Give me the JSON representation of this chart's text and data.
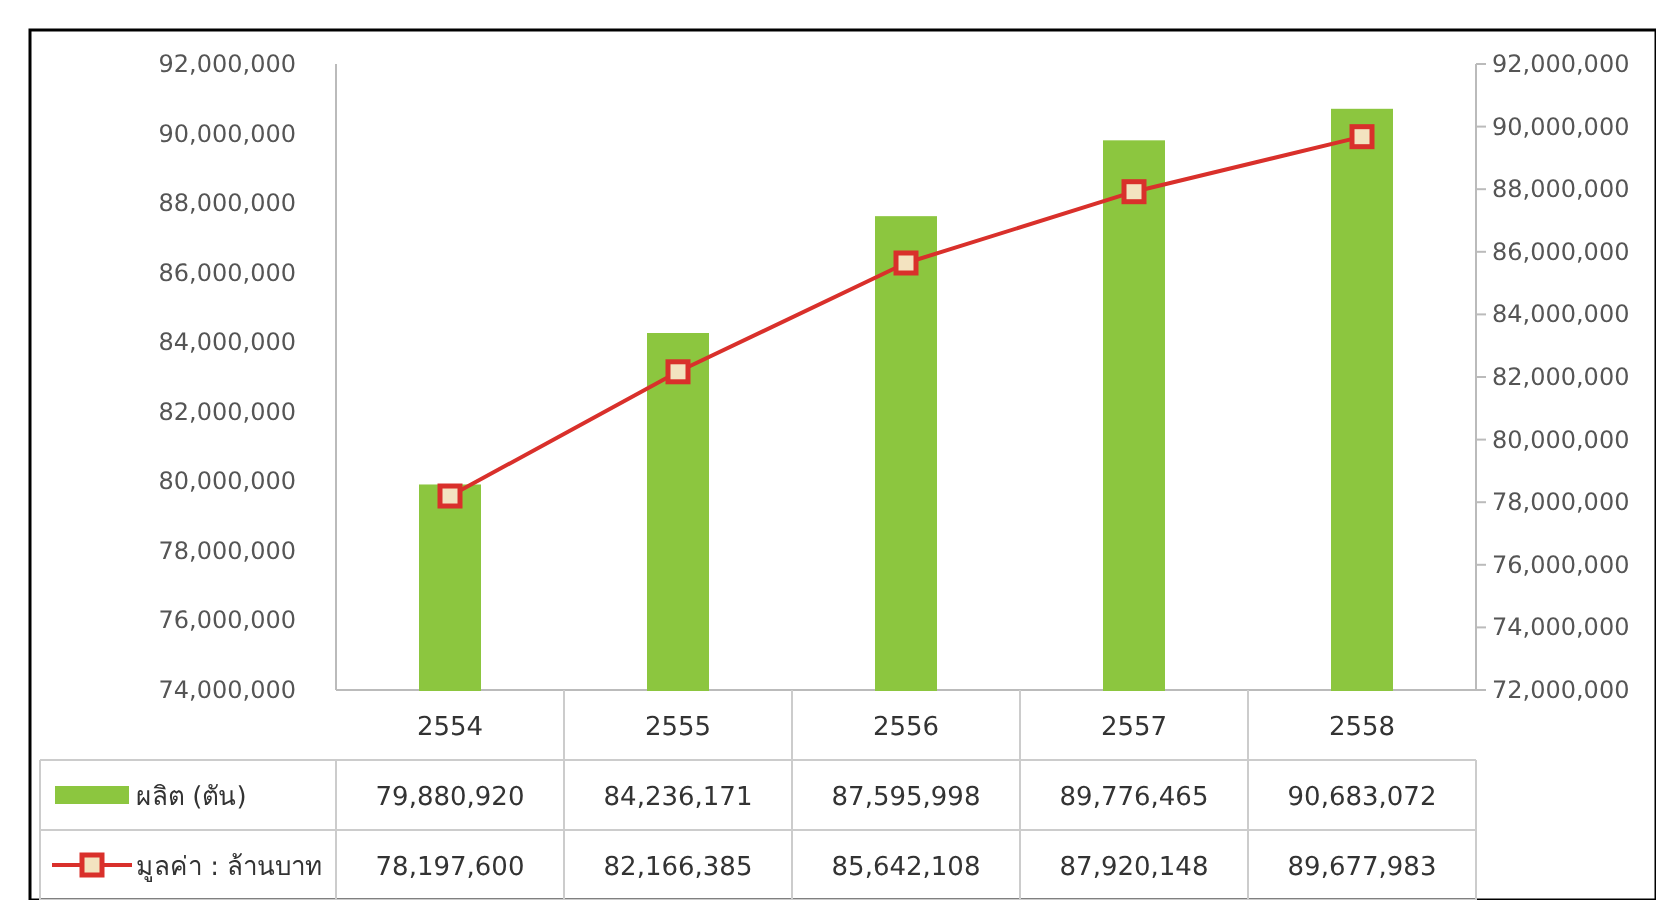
{
  "chart_data": {
    "type": "bar",
    "categories": [
      "2554",
      "2555",
      "2556",
      "2557",
      "2558"
    ],
    "series": [
      {
        "name": "ผลิต (ตัน)",
        "color": "#8cc63f",
        "values": [
          79880920,
          84236171,
          87595998,
          89776465,
          90683072
        ],
        "value_labels": [
          "79,880,920",
          "84,236,171",
          "87,595,998",
          "89,776,465",
          "90,683,072"
        ]
      },
      {
        "name": "มูลค่า : ล้านบาท",
        "type": "line",
        "axis": "y2",
        "color": "#d9302b",
        "marker": "square",
        "line_style": "solid",
        "values": [
          78197600,
          82166385,
          85642108,
          87920148,
          89677983
        ],
        "value_labels": [
          "78,197,600",
          "82,166,385",
          "85,642,108",
          "87,920,148",
          "89,677,983"
        ]
      }
    ],
    "ylim": [
      74000000,
      92000000
    ],
    "yticks": [
      {
        "value": 74000000,
        "label": "74,000,000"
      },
      {
        "value": 76000000,
        "label": "76,000,000"
      },
      {
        "value": 78000000,
        "label": "78,000,000"
      },
      {
        "value": 80000000,
        "label": "80,000,000"
      },
      {
        "value": 82000000,
        "label": "82,000,000"
      },
      {
        "value": 84000000,
        "label": "84,000,000"
      },
      {
        "value": 86000000,
        "label": "86,000,000"
      },
      {
        "value": 88000000,
        "label": "88,000,000"
      },
      {
        "value": 90000000,
        "label": "90,000,000"
      },
      {
        "value": 92000000,
        "label": "92,000,000"
      }
    ],
    "y2lim": [
      72000000,
      92000000
    ],
    "y2ticks": [
      {
        "value": 72000000,
        "label": "72,000,000"
      },
      {
        "value": 74000000,
        "label": "74,000,000"
      },
      {
        "value": 76000000,
        "label": "76,000,000"
      },
      {
        "value": 78000000,
        "label": "78,000,000"
      },
      {
        "value": 80000000,
        "label": "80,000,000"
      },
      {
        "value": 82000000,
        "label": "82,000,000"
      },
      {
        "value": 84000000,
        "label": "84,000,000"
      },
      {
        "value": 86000000,
        "label": "86,000,000"
      },
      {
        "value": 88000000,
        "label": "88,000,000"
      },
      {
        "value": 90000000,
        "label": "90,000,000"
      },
      {
        "value": 92000000,
        "label": "92,000,000"
      }
    ],
    "legend": "bottom"
  }
}
